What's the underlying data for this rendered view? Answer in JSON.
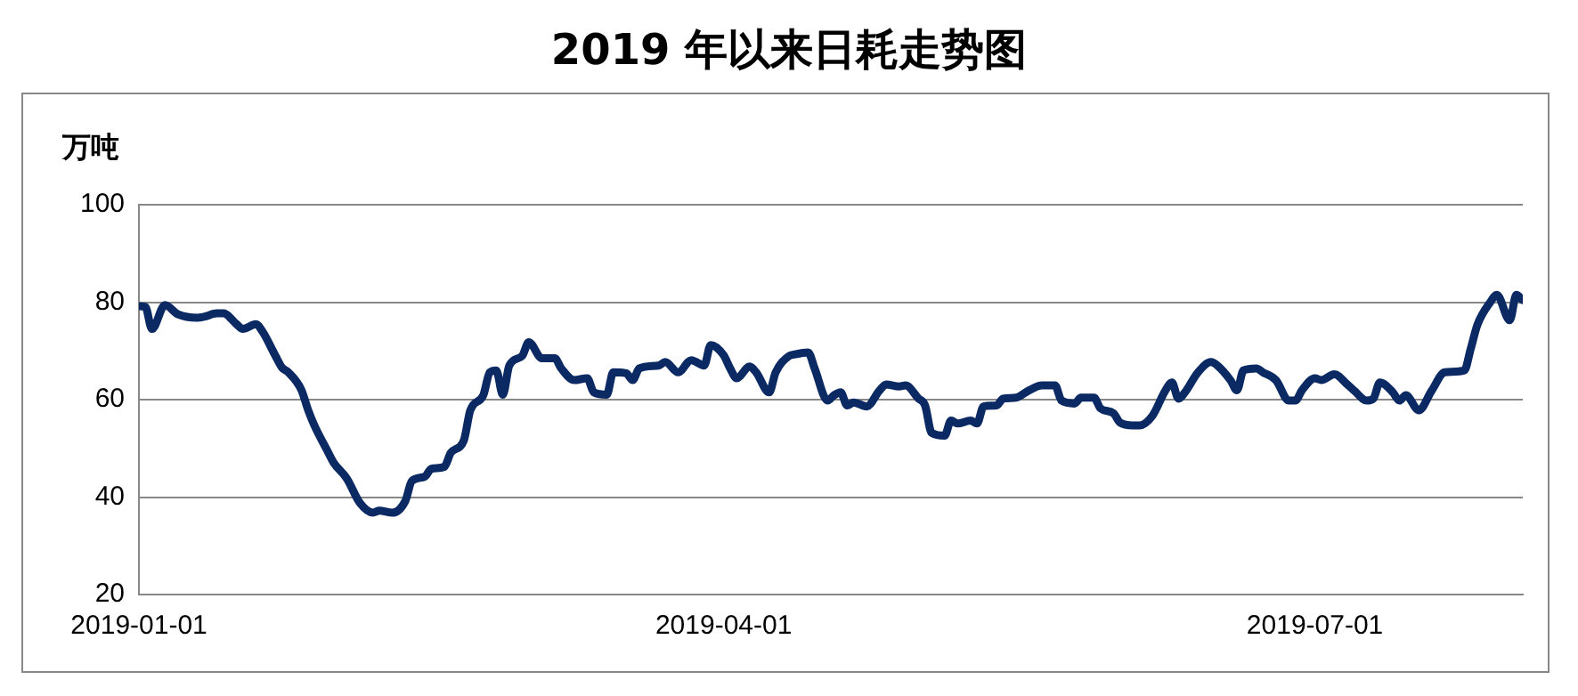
{
  "chart_data": {
    "type": "line",
    "title": "2019 年以来日耗走势图",
    "ylabel": "万吨",
    "x": [
      "2019-01-01",
      "2019-01-02",
      "2019-01-03",
      "2019-01-05",
      "2019-01-07",
      "2019-01-10",
      "2019-01-11",
      "2019-01-13",
      "2019-01-14",
      "2019-01-16",
      "2019-01-17",
      "2019-01-19",
      "2019-01-20",
      "2019-01-22",
      "2019-01-23",
      "2019-01-24",
      "2019-01-26",
      "2019-01-27",
      "2019-01-28",
      "2019-01-30",
      "2019-01-31",
      "2019-02-02",
      "2019-02-04",
      "2019-02-06",
      "2019-02-07",
      "2019-02-09",
      "2019-02-11",
      "2019-02-12",
      "2019-02-14",
      "2019-02-15",
      "2019-02-17",
      "2019-02-18",
      "2019-02-20",
      "2019-02-21",
      "2019-02-23",
      "2019-02-24",
      "2019-02-25",
      "2019-02-26",
      "2019-02-27",
      "2019-03-01",
      "2019-03-02",
      "2019-03-04",
      "2019-03-06",
      "2019-03-07",
      "2019-03-09",
      "2019-03-11",
      "2019-03-12",
      "2019-03-14",
      "2019-03-15",
      "2019-03-17",
      "2019-03-18",
      "2019-03-19",
      "2019-03-22",
      "2019-03-23",
      "2019-03-25",
      "2019-03-27",
      "2019-03-29",
      "2019-03-30",
      "2019-04-01",
      "2019-04-02",
      "2019-04-03",
      "2019-04-05",
      "2019-04-06",
      "2019-04-08",
      "2019-04-09",
      "2019-04-11",
      "2019-04-12",
      "2019-04-14",
      "2019-04-15",
      "2019-04-17",
      "2019-04-18",
      "2019-04-19",
      "2019-04-20",
      "2019-04-21",
      "2019-04-23",
      "2019-04-25",
      "2019-04-26",
      "2019-04-28",
      "2019-04-29",
      "2019-05-01",
      "2019-05-02",
      "2019-05-03",
      "2019-05-05",
      "2019-05-06",
      "2019-05-07",
      "2019-05-09",
      "2019-05-10",
      "2019-05-11",
      "2019-05-13",
      "2019-05-14",
      "2019-05-16",
      "2019-05-18",
      "2019-05-20",
      "2019-05-22",
      "2019-05-23",
      "2019-05-25",
      "2019-05-26",
      "2019-05-28",
      "2019-05-29",
      "2019-05-31",
      "2019-06-01",
      "2019-06-03",
      "2019-06-04",
      "2019-06-06",
      "2019-06-08",
      "2019-06-09",
      "2019-06-10",
      "2019-06-11",
      "2019-06-13",
      "2019-06-15",
      "2019-06-16",
      "2019-06-18",
      "2019-06-19",
      "2019-06-20",
      "2019-06-22",
      "2019-06-23",
      "2019-06-25",
      "2019-06-27",
      "2019-06-28",
      "2019-06-29",
      "2019-07-01",
      "2019-07-02",
      "2019-07-04",
      "2019-07-06",
      "2019-07-07",
      "2019-07-09",
      "2019-07-10",
      "2019-07-11",
      "2019-07-13",
      "2019-07-14",
      "2019-07-15",
      "2019-07-17",
      "2019-07-19",
      "2019-07-21",
      "2019-07-24",
      "2019-07-25",
      "2019-07-26",
      "2019-07-28",
      "2019-07-29",
      "2019-07-31",
      "2019-08-01",
      "2019-08-02"
    ],
    "series": [
      {
        "color": "#0b2a64",
        "values": [
          79.2,
          79,
          74.5,
          79.4,
          77.5,
          76.8,
          77,
          77.7,
          77.7,
          75.5,
          74.5,
          75.5,
          74,
          69,
          66.6,
          65.6,
          62,
          58,
          54.7,
          49.5,
          47,
          43.8,
          38.8,
          36.8,
          37.2,
          36.8,
          39.2,
          43.3,
          44.2,
          45.8,
          46.2,
          49.1,
          51.6,
          57.8,
          60.9,
          65.6,
          66,
          61,
          67,
          69,
          71.8,
          68.5,
          68.5,
          66.4,
          64,
          64.4,
          61.5,
          61,
          65.6,
          65.4,
          64,
          66.4,
          67,
          67.7,
          65.6,
          68.1,
          67,
          71.2,
          69.1,
          66.4,
          64.4,
          66.8,
          65.6,
          61.5,
          65.6,
          68.9,
          69.3,
          69.7,
          66.4,
          59.8,
          60.9,
          61.5,
          58.8,
          59.4,
          58.6,
          61.9,
          63.1,
          62.7,
          62.9,
          60.2,
          58.8,
          53.2,
          52.6,
          55.7,
          55.1,
          55.7,
          55.1,
          58.6,
          58.8,
          60.2,
          60.4,
          61.9,
          62.9,
          62.9,
          59.8,
          59.2,
          60.4,
          60.4,
          58.2,
          57.2,
          55.3,
          54.7,
          54.7,
          56.7,
          61.9,
          63.5,
          60.2,
          61.5,
          65.6,
          67.7,
          67,
          64,
          61.9,
          66,
          66.4,
          65.6,
          64,
          59.8,
          59.8,
          61.9,
          64.4,
          64,
          65.2,
          63.1,
          61.9,
          59.8,
          60.2,
          63.5,
          61.5,
          59.8,
          60.9,
          57.8,
          61.9,
          65.6,
          66,
          70.5,
          75.3,
          80,
          81.5,
          76.3,
          81.5,
          80.4
        ]
      }
    ],
    "xlim": [
      "2019-01-01",
      "2019-08-02"
    ],
    "xticks": [
      "2019-01-01",
      "2019-04-01",
      "2019-07-01"
    ],
    "ylim": [
      20,
      100
    ],
    "yticks": [
      20,
      40,
      60,
      80,
      100
    ],
    "grid": "y",
    "legend": false,
    "marker": "none",
    "line_style": "solid"
  }
}
